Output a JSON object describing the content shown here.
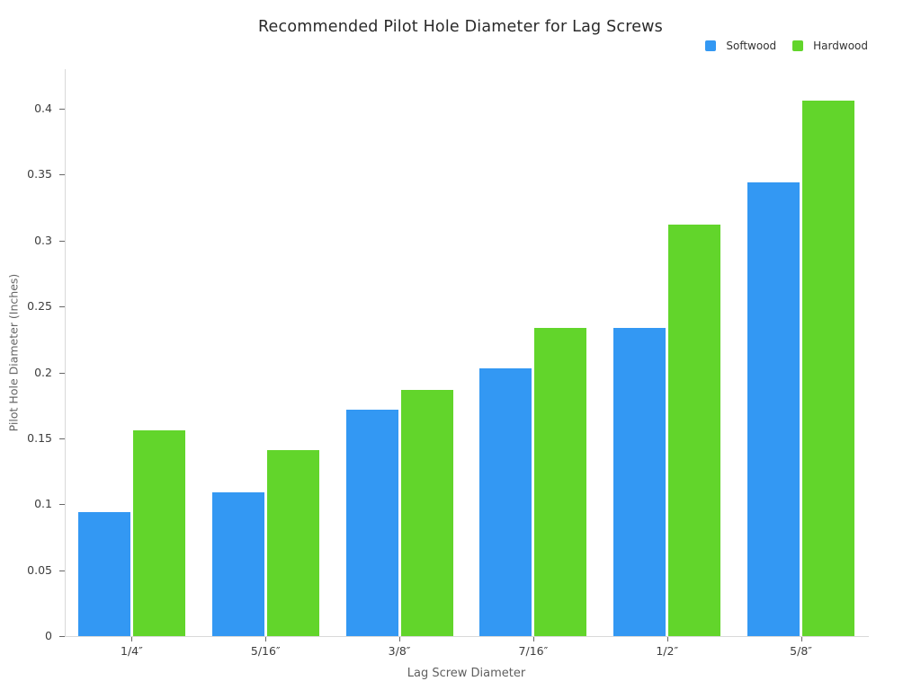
{
  "chart_data": {
    "type": "bar",
    "title": "Recommended Pilot Hole Diameter for Lag Screws",
    "xlabel": "Lag Screw Diameter",
    "ylabel": "Pilot Hole Diameter (Inches)",
    "categories": [
      "1/4″",
      "5/16″",
      "3/8″",
      "7/16″",
      "1/2″",
      "5/8″"
    ],
    "series": [
      {
        "name": "Softwood",
        "color": "#3398f3",
        "values": [
          0.094,
          0.109,
          0.172,
          0.203,
          0.234,
          0.344
        ]
      },
      {
        "name": "Hardwood",
        "color": "#62d52b",
        "values": [
          0.156,
          0.141,
          0.187,
          0.234,
          0.312,
          0.406
        ]
      }
    ],
    "ylim": [
      0,
      0.43
    ],
    "yticks": [
      0,
      0.05,
      0.1,
      0.15,
      0.2,
      0.25,
      0.3,
      0.35,
      0.4
    ],
    "grid": false,
    "legend_position": "top-right",
    "background_color": "#ffffff",
    "axis_line_color": "#d9d9d9",
    "tick_label_color": "#3d3d3d",
    "axis_title_color": "#5f5f5f",
    "title_color": "#2a2a2a"
  }
}
